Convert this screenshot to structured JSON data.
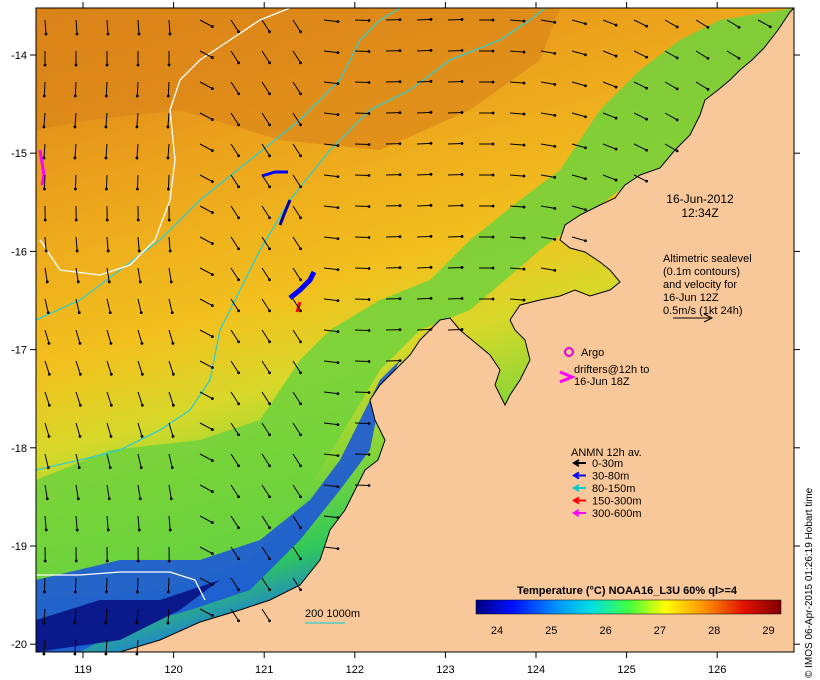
{
  "map": {
    "date_label": "16-Jun-2012",
    "time_label": "12:34Z",
    "altimetry_lines": [
      "Altimetric sealevel",
      "(0.1m contours)",
      "and velocity for",
      "16-Jun 12Z",
      "0.5m/s (1kt 24h)"
    ],
    "argo_label": "Argo",
    "drifter_lines": [
      "drifters@12h to",
      "16-Jun 18Z"
    ],
    "anmn_title": "ANMN 12h av.",
    "anmn_items": [
      {
        "label": "0-30m",
        "color": "#000000"
      },
      {
        "label": "30-80m",
        "color": "#0000ff"
      },
      {
        "label": "80-150m",
        "color": "#00cccc"
      },
      {
        "label": "150-300m",
        "color": "#ff0000"
      },
      {
        "label": "300-600m",
        "color": "#ff00ff"
      }
    ],
    "isobath_label": "200  1000m",
    "colorbar_title": "Temperature (°C) NOAA16_L3U 60% ql>=4",
    "colorbar_ticks": [
      "24",
      "25",
      "26",
      "27",
      "28",
      "29"
    ],
    "x_ticks": [
      "119",
      "120",
      "121",
      "122",
      "123",
      "124",
      "125",
      "126"
    ],
    "y_ticks": [
      "-14",
      "-15",
      "-16",
      "-17",
      "-18",
      "-19",
      "-20"
    ],
    "credit": "© IMOS 06-Apr-2015 01:26:19 Hobart time",
    "colors": {
      "land": "#f9c89a",
      "sst_warm": "#e5921a",
      "sst_mid": "#f3bf1c",
      "sst_cool": "#7cd83a",
      "sst_cold": "#1e2fa6",
      "argo": "#dd00dd",
      "isobath": "#33cccc"
    }
  }
}
